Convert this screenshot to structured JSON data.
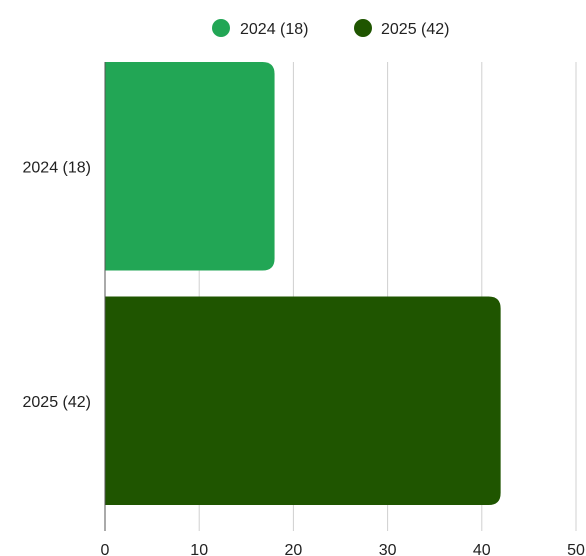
{
  "chart_data": {
    "type": "bar",
    "orientation": "horizontal",
    "categories": [
      "2024 (18)",
      "2025 (42)"
    ],
    "values": [
      18,
      42
    ],
    "colors": [
      "#22a655",
      "#1f5500"
    ],
    "legend": {
      "position": "top",
      "entries": [
        {
          "label": "2024 (18)",
          "color": "#22a655"
        },
        {
          "label": "2025 (42)",
          "color": "#1f5500"
        }
      ]
    },
    "x_ticks": [
      "0",
      "10",
      "20",
      "30",
      "40",
      "50"
    ],
    "xlim": [
      0,
      50
    ],
    "grid": true,
    "title": "",
    "xlabel": "",
    "ylabel": ""
  }
}
